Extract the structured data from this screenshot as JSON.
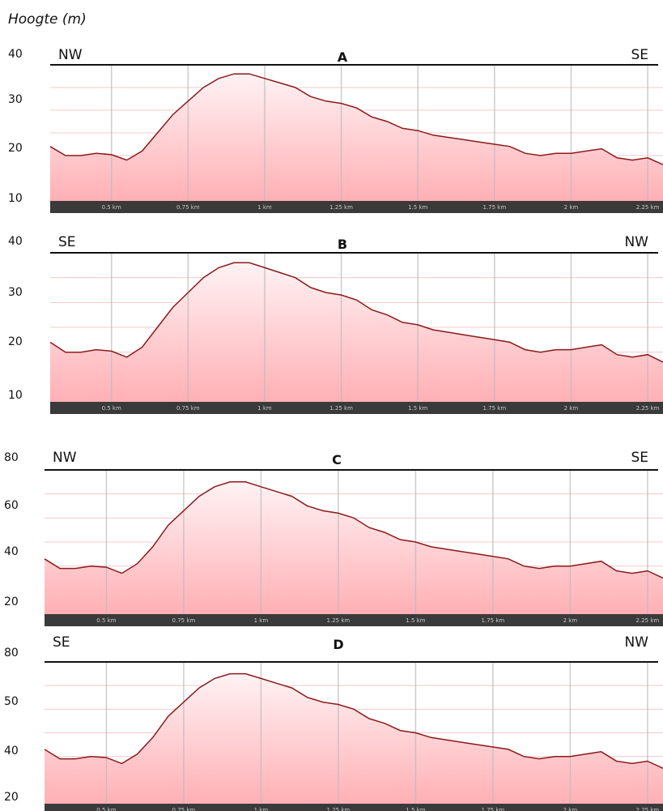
{
  "y_axis_label": "Hoogte (m)",
  "colors": {
    "line": "#8b1a1a",
    "fill_top": "#fff2f4",
    "fill_bottom": "#ffb0b5",
    "axis_bar": "#3a3a3a",
    "grid_v": "#bbbbbb",
    "grid_h": "#f4c8cc"
  },
  "chart_data": [
    {
      "type": "area",
      "title": "A",
      "left_label": "NW",
      "right_label": "SE",
      "ylim": [
        10,
        40
      ],
      "yticks": [
        10,
        20,
        30,
        40
      ],
      "xlim": [
        0.3,
        2.3
      ],
      "xticks": [
        0.5,
        0.75,
        1,
        1.25,
        1.5,
        1.75,
        2,
        2.25
      ],
      "xtick_labels": [
        "0.5 km",
        "0.75 km",
        "1 km",
        "1.25 km",
        "1.5 km",
        "1.75 km",
        "2 km",
        "2.25 km"
      ],
      "x": [
        0.3,
        0.35,
        0.4,
        0.45,
        0.5,
        0.55,
        0.6,
        0.65,
        0.7,
        0.75,
        0.8,
        0.85,
        0.9,
        0.95,
        1.0,
        1.05,
        1.1,
        1.15,
        1.2,
        1.25,
        1.3,
        1.35,
        1.4,
        1.45,
        1.5,
        1.55,
        1.6,
        1.65,
        1.7,
        1.75,
        1.8,
        1.85,
        1.9,
        1.95,
        2.0,
        2.05,
        2.1,
        2.15,
        2.2,
        2.25,
        2.3
      ],
      "y": [
        22,
        20,
        20,
        20.5,
        20.2,
        19,
        21,
        25,
        29,
        32,
        35,
        37,
        38,
        38,
        37,
        36,
        35,
        33,
        32,
        31.5,
        30.5,
        28.5,
        27.5,
        26,
        25.5,
        24.5,
        24,
        23.5,
        23,
        22.5,
        22,
        20.5,
        20,
        20.5,
        20.5,
        21,
        21.5,
        19.5,
        19,
        19.5,
        18
      ]
    },
    {
      "type": "area",
      "title": "B",
      "left_label": "SE",
      "right_label": "NW",
      "ylim": [
        10,
        40
      ],
      "yticks": [
        10,
        20,
        30,
        40
      ],
      "xlim": [
        0.3,
        2.3
      ],
      "xticks": [
        0.5,
        0.75,
        1,
        1.25,
        1.5,
        1.75,
        2,
        2.25
      ],
      "xtick_labels": [
        "0.5 km",
        "0.75 km",
        "1 km",
        "1.25 km",
        "1.5 km",
        "1.75 km",
        "2 km",
        "2.25 km"
      ],
      "x": [
        0.3,
        0.35,
        0.4,
        0.45,
        0.5,
        0.55,
        0.6,
        0.65,
        0.7,
        0.75,
        0.8,
        0.85,
        0.9,
        0.95,
        1.0,
        1.05,
        1.1,
        1.15,
        1.2,
        1.25,
        1.3,
        1.35,
        1.4,
        1.45,
        1.5,
        1.55,
        1.6,
        1.65,
        1.7,
        1.75,
        1.8,
        1.85,
        1.9,
        1.95,
        2.0,
        2.05,
        2.1,
        2.15,
        2.2,
        2.25,
        2.3
      ],
      "y": [
        22,
        20,
        20,
        20.5,
        20.2,
        19,
        21,
        25,
        29,
        32,
        35,
        37,
        38,
        38,
        37,
        36,
        35,
        33,
        32,
        31.5,
        30.5,
        28.5,
        27.5,
        26,
        25.5,
        24.5,
        24,
        23.5,
        23,
        22.5,
        22,
        20.5,
        20,
        20.5,
        20.5,
        21,
        21.5,
        19.5,
        19,
        19.5,
        18
      ]
    },
    {
      "type": "area",
      "title": "C",
      "left_label": "NW",
      "right_label": "SE",
      "ylim": [
        20,
        80
      ],
      "yticks": [
        20,
        40,
        60,
        80
      ],
      "xlim": [
        0.3,
        2.3
      ],
      "xticks": [
        0.5,
        0.75,
        1,
        1.25,
        1.5,
        1.75,
        2,
        2.25
      ],
      "xtick_labels": [
        "0.5 km",
        "0.75 km",
        "1 km",
        "1.25 km",
        "1.5 km",
        "1.75 km",
        "2 km",
        "2.25 km"
      ],
      "x": [
        0.3,
        0.35,
        0.4,
        0.45,
        0.5,
        0.55,
        0.6,
        0.65,
        0.7,
        0.75,
        0.8,
        0.85,
        0.9,
        0.95,
        1.0,
        1.05,
        1.1,
        1.15,
        1.2,
        1.25,
        1.3,
        1.35,
        1.4,
        1.45,
        1.5,
        1.55,
        1.6,
        1.65,
        1.7,
        1.75,
        1.8,
        1.85,
        1.9,
        1.95,
        2.0,
        2.05,
        2.1,
        2.15,
        2.2,
        2.25,
        2.3
      ],
      "y": [
        43,
        39,
        39,
        40,
        39.5,
        37,
        41,
        48,
        57,
        63,
        69,
        73,
        75,
        75,
        73,
        71,
        69,
        65,
        63,
        62,
        60,
        56,
        54,
        51,
        50,
        48,
        47,
        46,
        45,
        44,
        43,
        40,
        39,
        40,
        40,
        41,
        42,
        38,
        37,
        38,
        35
      ]
    },
    {
      "type": "area",
      "title": "D",
      "left_label": "SE",
      "right_label": "NW",
      "ylim": [
        20,
        80
      ],
      "yticks": [
        20,
        40,
        50,
        80
      ],
      "xlim": [
        0.3,
        2.3
      ],
      "xticks": [
        0.5,
        0.75,
        1,
        1.25,
        1.5,
        1.75,
        2,
        2.25
      ],
      "xtick_labels": [
        "0.5 km",
        "0.75 km",
        "1 km",
        "1.25 km",
        "1.5 km",
        "1.75 km",
        "2 km",
        "2.25 km"
      ],
      "x": [
        0.3,
        0.35,
        0.4,
        0.45,
        0.5,
        0.55,
        0.6,
        0.65,
        0.7,
        0.75,
        0.8,
        0.85,
        0.9,
        0.95,
        1.0,
        1.05,
        1.1,
        1.15,
        1.2,
        1.25,
        1.3,
        1.35,
        1.4,
        1.45,
        1.5,
        1.55,
        1.6,
        1.65,
        1.7,
        1.75,
        1.8,
        1.85,
        1.9,
        1.95,
        2.0,
        2.05,
        2.1,
        2.15,
        2.2,
        2.25,
        2.3
      ],
      "y": [
        43,
        39,
        39,
        40,
        39.5,
        37,
        41,
        48,
        57,
        63,
        69,
        73,
        75,
        75,
        73,
        71,
        69,
        65,
        63,
        62,
        60,
        56,
        54,
        51,
        50,
        48,
        47,
        46,
        45,
        44,
        43,
        40,
        39,
        40,
        40,
        41,
        42,
        38,
        37,
        38,
        35
      ]
    }
  ]
}
